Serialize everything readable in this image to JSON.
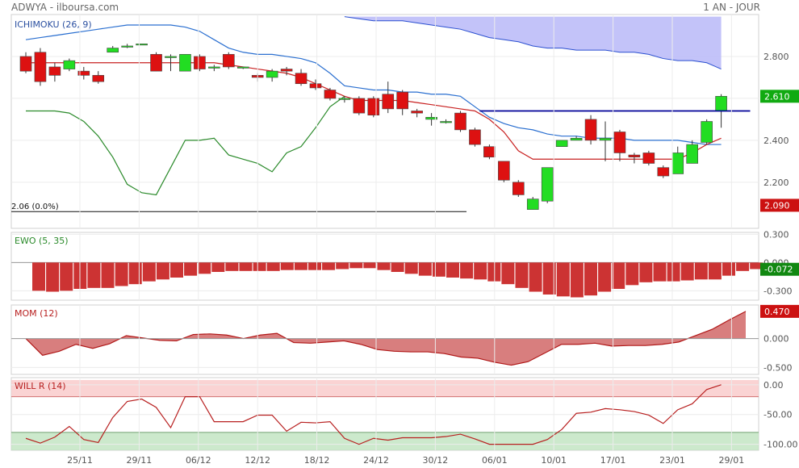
{
  "header": {
    "left": "ADWYA - ilboursa.com",
    "right": "1 AN - JOUR"
  },
  "colors": {
    "up": "#22dd22",
    "down": "#dd1111",
    "cloud": "#b8b8f8",
    "kijun": "#c82020",
    "tenkan": "#2a6fd0",
    "chikou": "#2a8a2a",
    "ewo": "#cc3333",
    "mom": "#d47070",
    "will": "#b82020",
    "resistance": "#000099"
  },
  "chart_data": [
    {
      "type": "candlestick",
      "title": "ICHIMOKU (26, 9)",
      "ylim": [
        1.98,
        3.0
      ],
      "yticks": [
        {
          "v": 2.2,
          "label": "2.200"
        },
        {
          "v": 2.4,
          "label": "2.400"
        },
        {
          "v": 2.6,
          "label": "2.600"
        },
        {
          "v": 2.8,
          "label": "2.800"
        }
      ],
      "price_label": {
        "v": 2.61,
        "label": "2.610"
      },
      "low_label": {
        "v": 2.09,
        "label": "2.090"
      },
      "ref_line": {
        "v": 2.06,
        "label": "2.06  (0.0%)"
      },
      "resistance": {
        "from": 32,
        "to": 50,
        "v": 2.54
      },
      "candles": [
        [
          2.8,
          2.73,
          2.82,
          2.72
        ],
        [
          2.82,
          2.68,
          2.84,
          2.66
        ],
        [
          2.75,
          2.71,
          2.77,
          2.68
        ],
        [
          2.74,
          2.78,
          2.79,
          2.73
        ],
        [
          2.73,
          2.71,
          2.75,
          2.69
        ],
        [
          2.71,
          2.68,
          2.73,
          2.67
        ],
        [
          2.82,
          2.84,
          2.85,
          2.82
        ],
        [
          2.85,
          2.85,
          2.86,
          2.84
        ],
        [
          2.86,
          2.86,
          2.86,
          2.86
        ],
        [
          2.81,
          2.73,
          2.82,
          2.73
        ],
        [
          2.8,
          2.8,
          2.81,
          2.73
        ],
        [
          2.73,
          2.81,
          2.81,
          2.73
        ],
        [
          2.8,
          2.74,
          2.81,
          2.73
        ],
        [
          2.75,
          2.75,
          2.76,
          2.73
        ],
        [
          2.81,
          2.75,
          2.82,
          2.74
        ],
        [
          2.75,
          2.75,
          2.75,
          2.74
        ],
        [
          2.71,
          2.7,
          2.72,
          2.68
        ],
        [
          2.7,
          2.73,
          2.74,
          2.68
        ],
        [
          2.74,
          2.73,
          2.75,
          2.71
        ],
        [
          2.72,
          2.67,
          2.74,
          2.66
        ],
        [
          2.67,
          2.65,
          2.69,
          2.64
        ],
        [
          2.64,
          2.6,
          2.65,
          2.59
        ],
        [
          2.6,
          2.6,
          2.61,
          2.58
        ],
        [
          2.6,
          2.53,
          2.61,
          2.52
        ],
        [
          2.6,
          2.52,
          2.61,
          2.51
        ],
        [
          2.62,
          2.55,
          2.68,
          2.53
        ],
        [
          2.63,
          2.55,
          2.64,
          2.52
        ],
        [
          2.54,
          2.53,
          2.55,
          2.51
        ],
        [
          2.5,
          2.51,
          2.53,
          2.47
        ],
        [
          2.49,
          2.49,
          2.5,
          2.48
        ],
        [
          2.53,
          2.45,
          2.54,
          2.44
        ],
        [
          2.45,
          2.38,
          2.46,
          2.37
        ],
        [
          2.37,
          2.32,
          2.38,
          2.31
        ],
        [
          2.3,
          2.21,
          2.3,
          2.2
        ],
        [
          2.2,
          2.14,
          2.21,
          2.13
        ],
        [
          2.07,
          2.12,
          2.13,
          2.07
        ],
        [
          2.11,
          2.27,
          2.27,
          2.1
        ],
        [
          2.37,
          2.4,
          2.4,
          2.37
        ],
        [
          2.4,
          2.41,
          2.42,
          2.4
        ],
        [
          2.5,
          2.4,
          2.52,
          2.38
        ],
        [
          2.4,
          2.41,
          2.49,
          2.3
        ],
        [
          2.44,
          2.34,
          2.45,
          2.3
        ],
        [
          2.33,
          2.32,
          2.34,
          2.29
        ],
        [
          2.34,
          2.29,
          2.35,
          2.28
        ],
        [
          2.27,
          2.23,
          2.28,
          2.22
        ],
        [
          2.24,
          2.34,
          2.37,
          2.24
        ],
        [
          2.29,
          2.38,
          2.4,
          2.29
        ],
        [
          2.39,
          2.49,
          2.5,
          2.38
        ],
        [
          2.54,
          2.61,
          2.62,
          2.46
        ]
      ],
      "kijun": [
        2.77,
        2.77,
        2.77,
        2.77,
        2.77,
        2.77,
        2.77,
        2.77,
        2.77,
        2.77,
        2.77,
        2.77,
        2.77,
        2.77,
        2.76,
        2.75,
        2.74,
        2.73,
        2.72,
        2.7,
        2.67,
        2.64,
        2.61,
        2.59,
        2.59,
        2.59,
        2.59,
        2.58,
        2.57,
        2.56,
        2.55,
        2.54,
        2.5,
        2.44,
        2.35,
        2.31,
        2.31,
        2.31,
        2.31,
        2.31,
        2.31,
        2.31,
        2.31,
        2.31,
        2.31,
        2.31,
        2.34,
        2.38,
        2.41
      ],
      "tenkan": [
        2.88,
        2.89,
        2.9,
        2.91,
        2.92,
        2.93,
        2.94,
        2.95,
        2.95,
        2.95,
        2.95,
        2.94,
        2.92,
        2.88,
        2.84,
        2.82,
        2.81,
        2.81,
        2.8,
        2.79,
        2.77,
        2.72,
        2.66,
        2.65,
        2.64,
        2.64,
        2.63,
        2.63,
        2.62,
        2.62,
        2.61,
        2.56,
        2.51,
        2.48,
        2.46,
        2.45,
        2.43,
        2.42,
        2.42,
        2.41,
        2.41,
        2.41,
        2.4,
        2.4,
        2.4,
        2.4,
        2.39,
        2.38,
        2.38
      ],
      "chikou": [
        2.54,
        2.54,
        2.54,
        2.53,
        2.49,
        2.42,
        2.32,
        2.19,
        2.15,
        2.14,
        2.27,
        2.4,
        2.4,
        2.41,
        2.33,
        2.31,
        2.29,
        2.25,
        2.34,
        2.37,
        2.46,
        2.56,
        2.61
      ],
      "cloud": [
        [
          22,
          2.99,
          2.99
        ],
        [
          23,
          2.98,
          2.99
        ],
        [
          24,
          2.97,
          2.99
        ],
        [
          25,
          2.97,
          2.99
        ],
        [
          26,
          2.97,
          2.99
        ],
        [
          27,
          2.96,
          2.99
        ],
        [
          28,
          2.95,
          2.99
        ],
        [
          29,
          2.94,
          2.99
        ],
        [
          30,
          2.93,
          2.99
        ],
        [
          31,
          2.91,
          2.99
        ],
        [
          32,
          2.89,
          2.99
        ],
        [
          33,
          2.88,
          2.99
        ],
        [
          34,
          2.87,
          2.99
        ],
        [
          35,
          2.85,
          2.99
        ],
        [
          36,
          2.84,
          2.99
        ],
        [
          37,
          2.84,
          2.99
        ],
        [
          38,
          2.83,
          2.99
        ],
        [
          39,
          2.83,
          2.99
        ],
        [
          40,
          2.83,
          2.99
        ],
        [
          41,
          2.82,
          2.99
        ],
        [
          42,
          2.82,
          2.99
        ],
        [
          43,
          2.81,
          2.99
        ],
        [
          44,
          2.79,
          2.99
        ],
        [
          45,
          2.78,
          2.99
        ],
        [
          46,
          2.78,
          2.99
        ],
        [
          47,
          2.77,
          2.99
        ],
        [
          48,
          2.74,
          2.99
        ]
      ]
    },
    {
      "type": "bar",
      "title": "EWO (5, 35)",
      "ylim": [
        -0.4,
        0.32
      ],
      "yticks": [
        {
          "v": 0.3,
          "label": "0.300"
        },
        {
          "v": 0,
          "label": "0.000"
        },
        {
          "v": -0.3,
          "label": "-0.300"
        }
      ],
      "value_label": {
        "v": -0.072,
        "label": "-0.072"
      },
      "values": [
        -0.3,
        -0.31,
        -0.3,
        -0.28,
        -0.27,
        -0.27,
        -0.25,
        -0.23,
        -0.2,
        -0.18,
        -0.16,
        -0.14,
        -0.12,
        -0.1,
        -0.09,
        -0.09,
        -0.09,
        -0.09,
        -0.08,
        -0.08,
        -0.08,
        -0.08,
        -0.07,
        -0.06,
        -0.06,
        -0.08,
        -0.1,
        -0.12,
        -0.14,
        -0.15,
        -0.16,
        -0.17,
        -0.18,
        -0.2,
        -0.23,
        -0.27,
        -0.31,
        -0.34,
        -0.36,
        -0.37,
        -0.35,
        -0.31,
        -0.28,
        -0.24,
        -0.21,
        -0.2,
        -0.2,
        -0.19,
        -0.18,
        -0.18,
        -0.14,
        -0.09,
        -0.07
      ]
    },
    {
      "type": "area",
      "title": "MOM (12)",
      "ylim": [
        -0.62,
        0.58
      ],
      "yticks": [
        {
          "v": 0,
          "label": "0.000"
        },
        {
          "v": -0.5,
          "label": "-0.500"
        }
      ],
      "value_label": {
        "v": 0.47,
        "label": "0.470"
      },
      "values": [
        0.0,
        -0.29,
        -0.22,
        -0.1,
        -0.17,
        -0.09,
        0.05,
        0.01,
        -0.03,
        -0.04,
        0.07,
        0.08,
        0.06,
        0.0,
        0.06,
        0.09,
        -0.07,
        -0.08,
        -0.06,
        -0.04,
        -0.1,
        -0.19,
        -0.22,
        -0.23,
        -0.23,
        -0.26,
        -0.32,
        -0.34,
        -0.41,
        -0.46,
        -0.4,
        -0.25,
        -0.1,
        -0.1,
        -0.08,
        -0.13,
        -0.12,
        -0.12,
        -0.1,
        -0.06,
        0.05,
        0.16,
        0.32,
        0.47
      ]
    },
    {
      "type": "line",
      "title": "WILL R (14)",
      "ylim": [
        -110,
        12
      ],
      "yticks": [
        {
          "v": 0,
          "label": "0.00"
        },
        {
          "v": -50,
          "label": "-50.00"
        },
        {
          "v": -100,
          "label": "-100.00"
        }
      ],
      "bands": {
        "upper": [
          -20,
          8
        ],
        "lower": [
          -110,
          -80
        ]
      },
      "values": [
        -90,
        -98,
        -88,
        -70,
        -92,
        -97,
        -55,
        -28,
        -24,
        -38,
        -72,
        -20,
        -20,
        -62,
        -62,
        -62,
        -51,
        -51,
        -78,
        -63,
        -64,
        -62,
        -90,
        -100,
        -90,
        -93,
        -89,
        -89,
        -89,
        -87,
        -83,
        -91,
        -100,
        -100,
        -100,
        -100,
        -92,
        -75,
        -48,
        -46,
        -40,
        -42,
        -45,
        -51,
        -65,
        -42,
        -32,
        -8,
        0
      ]
    }
  ],
  "x_ticks": [
    "25/11",
    "29/11",
    "06/12",
    "12/12",
    "18/12",
    "24/12",
    "30/12",
    "06/01",
    "10/01",
    "17/01",
    "23/01",
    "29/01"
  ]
}
